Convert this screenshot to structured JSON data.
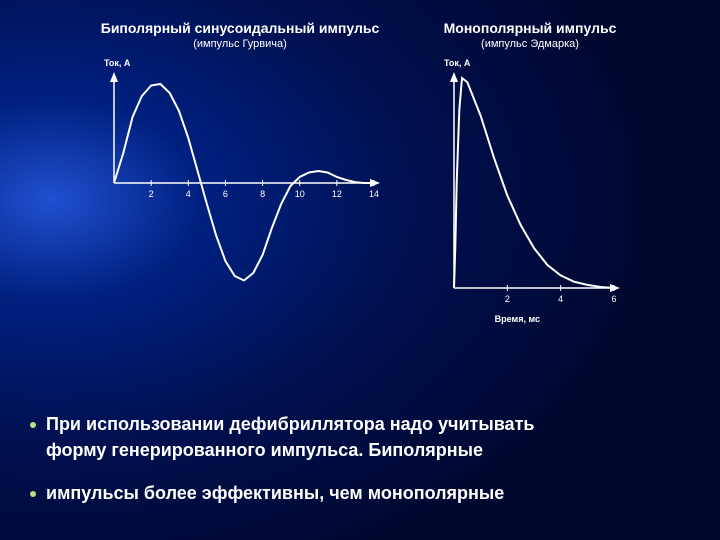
{
  "background": {
    "gradient_center_color": "#2050d0",
    "gradient_mid_color": "#002080",
    "gradient_outer_color": "#000830"
  },
  "left_chart": {
    "type": "line",
    "title": "Биполярный синусоидальный импульс",
    "subtitle": "(импульс Гурвича)",
    "ylabel": "Ток, А",
    "xlim": [
      0,
      14
    ],
    "ylim": [
      -70,
      70
    ],
    "xticks": [
      2,
      4,
      6,
      8,
      10,
      12,
      14
    ],
    "curve": [
      [
        0,
        0
      ],
      [
        0.5,
        20
      ],
      [
        1,
        44
      ],
      [
        1.5,
        58
      ],
      [
        2,
        65
      ],
      [
        2.5,
        66
      ],
      [
        3,
        60
      ],
      [
        3.5,
        48
      ],
      [
        4,
        30
      ],
      [
        4.5,
        8
      ],
      [
        5,
        -14
      ],
      [
        5.5,
        -35
      ],
      [
        6,
        -52
      ],
      [
        6.5,
        -62
      ],
      [
        7,
        -65
      ],
      [
        7.5,
        -60
      ],
      [
        8,
        -48
      ],
      [
        8.5,
        -30
      ],
      [
        9,
        -14
      ],
      [
        9.5,
        -2
      ],
      [
        10,
        4
      ],
      [
        10.5,
        7
      ],
      [
        11,
        8
      ],
      [
        11.5,
        7
      ],
      [
        12,
        4
      ],
      [
        12.5,
        2
      ],
      [
        13,
        0.5
      ],
      [
        13.5,
        0
      ],
      [
        14,
        0
      ]
    ],
    "line_color": "#ffffff",
    "line_width": 2,
    "axis_color": "#ffffff"
  },
  "right_chart": {
    "type": "line",
    "title": "Монополярный импульс",
    "subtitle": "(импульс Эдмарка)",
    "ylabel": "Ток, А",
    "xlim": [
      0,
      6
    ],
    "ylim": [
      0,
      100
    ],
    "xticks": [
      2,
      4,
      6
    ],
    "curve": [
      [
        0,
        0
      ],
      [
        0.05,
        20
      ],
      [
        0.1,
        50
      ],
      [
        0.2,
        85
      ],
      [
        0.3,
        100
      ],
      [
        0.5,
        98
      ],
      [
        1,
        82
      ],
      [
        1.5,
        62
      ],
      [
        2,
        44
      ],
      [
        2.5,
        30
      ],
      [
        3,
        19
      ],
      [
        3.5,
        11
      ],
      [
        4,
        6
      ],
      [
        4.5,
        3
      ],
      [
        5,
        1.5
      ],
      [
        5.5,
        0.5
      ],
      [
        6,
        0
      ]
    ],
    "line_color": "#ffffff",
    "line_width": 2,
    "axis_color": "#ffffff"
  },
  "xlabel": "Время, мс",
  "bullets": {
    "dot_color": "#c0e080",
    "text_color": "#ffffff",
    "line1a": "При использовании дефибриллятора надо учитывать",
    "line1b": "форму генерированного импульса. Биполярные",
    "line2": "импульсы более эффективны, чем монополярные"
  }
}
